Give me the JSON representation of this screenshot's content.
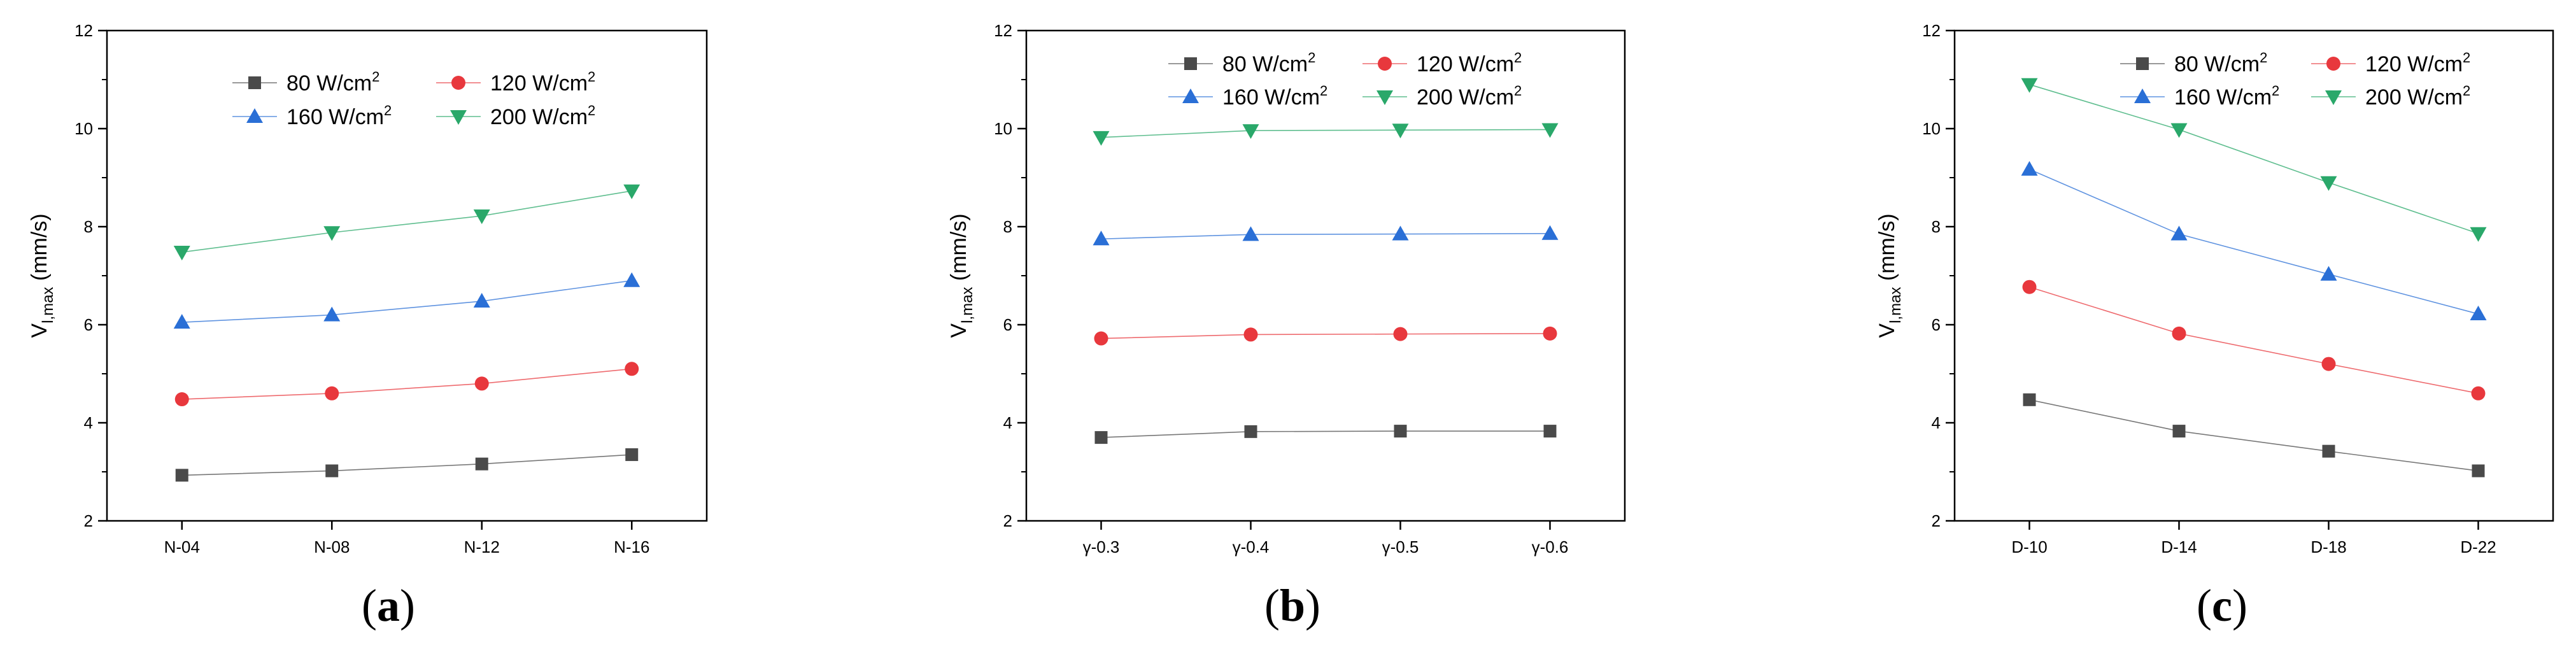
{
  "chart_data": [
    {
      "type": "line",
      "panel_label": {
        "open": "(",
        "letter": "a",
        "close": ")"
      },
      "ylabel": {
        "base": "V",
        "sub": "l,max",
        "unit": " (mm/s)"
      },
      "categories": [
        "N-04",
        "N-08",
        "N-12",
        "N-16"
      ],
      "ylim": [
        2,
        12
      ],
      "yticks": [
        "2",
        "4",
        "6",
        "8",
        "10",
        "12"
      ],
      "legend_position": "top-right",
      "series": [
        {
          "name": "80 W/cm",
          "sup": "2",
          "color": "#4a4a4a",
          "marker": "square",
          "values": [
            2.93,
            3.02,
            3.16,
            3.35
          ]
        },
        {
          "name": "120 W/cm",
          "sup": "2",
          "color": "#e8383d",
          "marker": "circle",
          "values": [
            4.48,
            4.6,
            4.8,
            5.1
          ]
        },
        {
          "name": "160 W/cm",
          "sup": "2",
          "color": "#2a6fd6",
          "marker": "triangle-up",
          "values": [
            6.05,
            6.2,
            6.48,
            6.9
          ]
        },
        {
          "name": "200 W/cm",
          "sup": "2",
          "color": "#2aa86a",
          "marker": "triangle-down",
          "values": [
            7.48,
            7.88,
            8.22,
            8.73
          ]
        }
      ]
    },
    {
      "type": "line",
      "panel_label": {
        "open": "(",
        "letter": "b",
        "close": ")"
      },
      "ylabel": {
        "base": "V",
        "sub": "l,max",
        "unit": " (mm/s)"
      },
      "categories": [
        "γ-0.3",
        "γ-0.4",
        "γ-0.5",
        "γ-0.6"
      ],
      "ylim": [
        2,
        12
      ],
      "yticks": [
        "2",
        "4",
        "6",
        "8",
        "10",
        "12"
      ],
      "legend_position": "top-right",
      "series": [
        {
          "name": "80 W/cm",
          "sup": "2",
          "color": "#4a4a4a",
          "marker": "square",
          "values": [
            3.7,
            3.82,
            3.83,
            3.83
          ]
        },
        {
          "name": "120 W/cm",
          "sup": "2",
          "color": "#e8383d",
          "marker": "circle",
          "values": [
            5.72,
            5.8,
            5.81,
            5.82
          ]
        },
        {
          "name": "160 W/cm",
          "sup": "2",
          "color": "#2a6fd6",
          "marker": "triangle-up",
          "values": [
            7.75,
            7.84,
            7.85,
            7.86
          ]
        },
        {
          "name": "200 W/cm",
          "sup": "2",
          "color": "#2aa86a",
          "marker": "triangle-down",
          "values": [
            9.82,
            9.96,
            9.97,
            9.98
          ]
        }
      ]
    },
    {
      "type": "line",
      "panel_label": {
        "open": "(",
        "letter": "c",
        "close": ")"
      },
      "ylabel": {
        "base": "V",
        "sub": "l,max",
        "unit": " (mm/s)"
      },
      "categories": [
        "D-10",
        "D-14",
        "D-18",
        "D-22"
      ],
      "ylim": [
        2,
        12
      ],
      "yticks": [
        "2",
        "4",
        "6",
        "8",
        "10",
        "12"
      ],
      "legend_position": "top-right",
      "series": [
        {
          "name": "80 W/cm",
          "sup": "2",
          "color": "#4a4a4a",
          "marker": "square",
          "values": [
            4.47,
            3.83,
            3.42,
            3.02
          ]
        },
        {
          "name": "120 W/cm",
          "sup": "2",
          "color": "#e8383d",
          "marker": "circle",
          "values": [
            6.77,
            5.82,
            5.2,
            4.6
          ]
        },
        {
          "name": "160 W/cm",
          "sup": "2",
          "color": "#2a6fd6",
          "marker": "triangle-up",
          "values": [
            9.17,
            7.85,
            7.03,
            6.22
          ]
        },
        {
          "name": "200 W/cm",
          "sup": "2",
          "color": "#2aa86a",
          "marker": "triangle-down",
          "values": [
            10.9,
            9.98,
            8.9,
            7.86
          ]
        }
      ]
    }
  ]
}
